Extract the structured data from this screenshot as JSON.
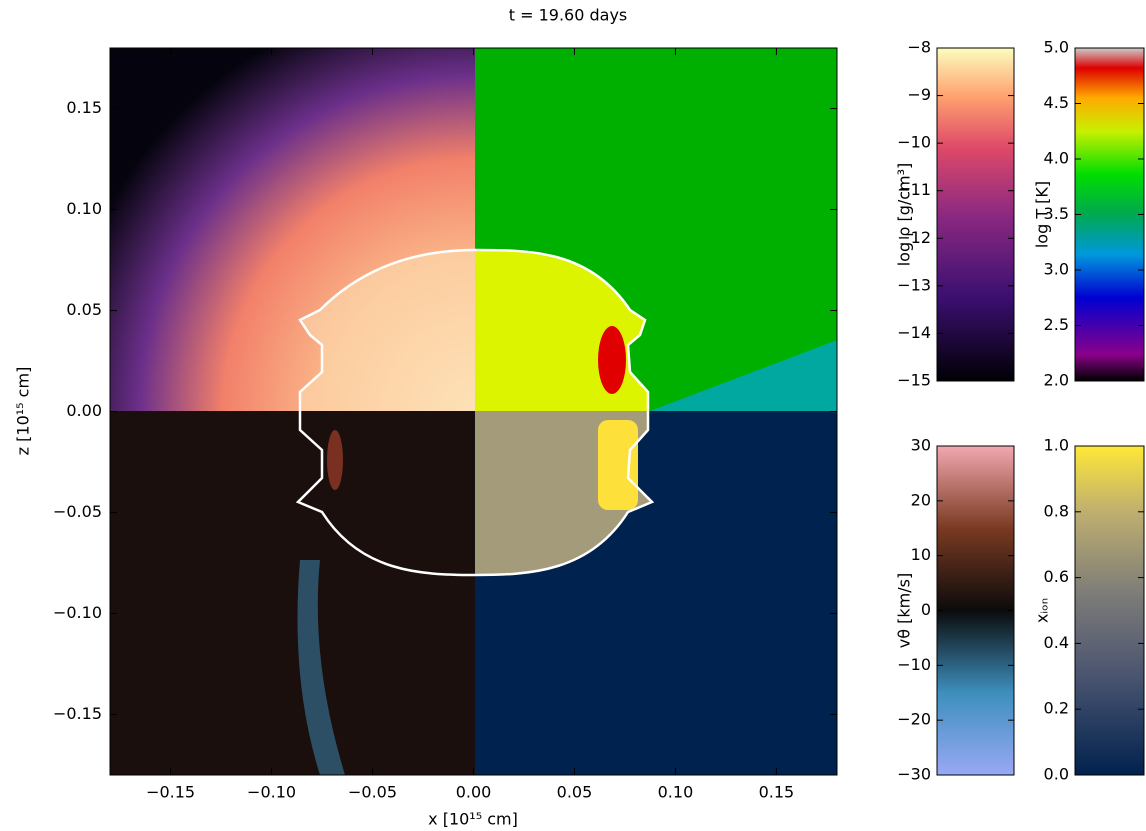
{
  "chart_data": {
    "type": "quadrant-map",
    "title": "t = 19.60 days",
    "xlabel": "x [10¹⁵ cm]",
    "ylabel": "z [10¹⁵ cm]",
    "xlim": [
      -0.18,
      0.18
    ],
    "ylim": [
      -0.18,
      0.18
    ],
    "xticks": [
      {
        "value": -0.15,
        "label": "−0.15"
      },
      {
        "value": -0.1,
        "label": "−0.10"
      },
      {
        "value": -0.05,
        "label": "−0.05"
      },
      {
        "value": 0,
        "label": "0.00"
      },
      0.05,
      {
        "value": 0.1,
        "label": "0.10"
      },
      0.15
    ],
    "yticks": [
      {
        "value": -0.15,
        "label": "−0.15"
      },
      {
        "value": -0.1,
        "label": "−0.10"
      },
      {
        "value": -0.05,
        "label": "−0.05"
      },
      {
        "value": 0,
        "label": "0.00"
      },
      0.05,
      {
        "value": 0.1,
        "label": "0.10"
      },
      0.15
    ],
    "colorbars": [
      {
        "label": "log ρ [g/cm³]",
        "lim": [
          -15,
          -8
        ],
        "ticks": [
          {
            "value": -15,
            "label": "−15"
          },
          {
            "value": -14,
            "label": "−14"
          },
          {
            "value": -13,
            "label": "−13"
          },
          {
            "value": -12,
            "label": "−12"
          },
          {
            "value": -11,
            "label": "−11"
          },
          {
            "value": -10,
            "label": "−10"
          },
          {
            "value": -9,
            "label": "−9"
          },
          {
            "value": -8,
            "label": "−8"
          }
        ]
      },
      {
        "label": "log T [K]",
        "lim": [
          2,
          5
        ],
        "ticks": [
          {
            "value": 2,
            "label": "2.0"
          },
          2.5,
          {
            "value": 3,
            "label": "3.0"
          },
          3.5,
          {
            "value": 4,
            "label": "4.0"
          },
          4.5,
          {
            "value": 5,
            "label": "5.0"
          }
        ]
      },
      {
        "label": "vθ [km/s]",
        "lim": [
          -30,
          30
        ],
        "ticks": [
          {
            "value": -30,
            "label": "−30"
          },
          {
            "value": -20,
            "label": "−20"
          },
          {
            "value": -10,
            "label": "−10"
          },
          0,
          10,
          20,
          30
        ]
      },
      {
        "label": "xᵢₒₙ",
        "lim": [
          0,
          1
        ],
        "ticks": [
          {
            "value": 0,
            "label": "0.0"
          },
          0.2,
          0.4,
          0.6,
          0.8,
          {
            "value": 1,
            "label": "1.0"
          }
        ]
      }
    ]
  }
}
